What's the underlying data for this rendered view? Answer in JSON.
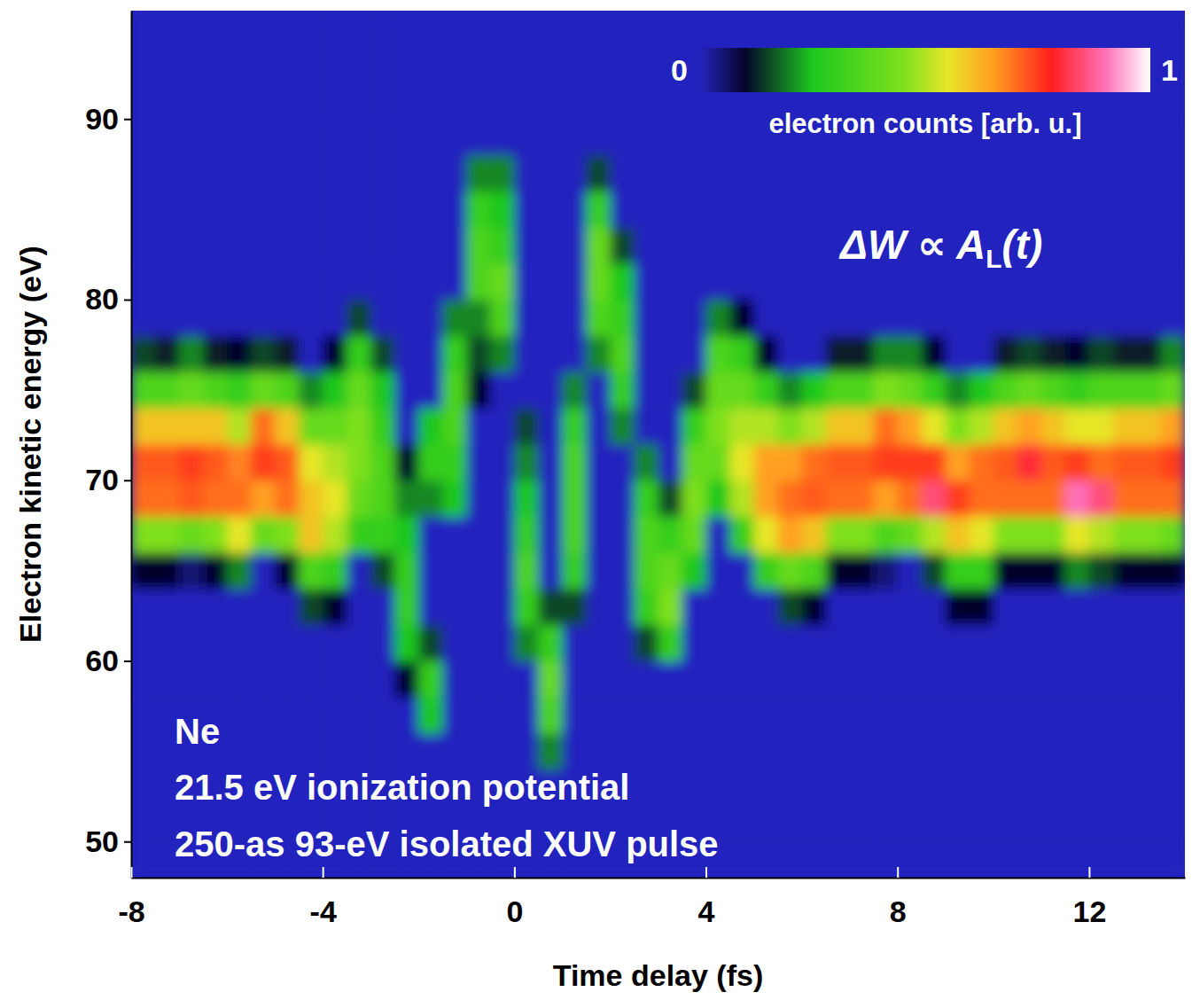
{
  "chart_data": {
    "type": "heatmap",
    "xlabel": "Time delay (fs)",
    "ylabel": "Electron kinetic energy (eV)",
    "xlim": [
      -8,
      14
    ],
    "ylim": [
      48,
      96
    ],
    "xticks": [
      -8,
      -4,
      0,
      4,
      8,
      12
    ],
    "yticks": [
      50,
      60,
      70,
      80,
      90
    ],
    "x": [
      -7.75,
      -7.25,
      -6.75,
      -6.25,
      -5.75,
      -5.25,
      -4.75,
      -4.25,
      -3.75,
      -3.25,
      -2.75,
      -2.25,
      -1.75,
      -1.25,
      -0.75,
      -0.25,
      0.25,
      0.75,
      1.25,
      1.75,
      2.25,
      2.75,
      3.25,
      3.75,
      4.25,
      4.75,
      5.25,
      5.75,
      6.25,
      6.75,
      7.25,
      7.75,
      8.25,
      8.75,
      9.25,
      9.75,
      10.25,
      10.75,
      11.25,
      11.75,
      12.25,
      12.75,
      13.25,
      13.75
    ],
    "y": [
      49,
      51,
      53,
      55,
      57,
      59,
      61,
      63,
      65,
      67,
      69,
      71,
      73,
      75,
      77,
      79,
      81,
      83,
      85,
      87,
      89,
      91,
      93,
      95
    ],
    "z": [
      [
        0,
        0,
        0,
        0,
        0,
        0,
        0,
        0,
        0.1,
        0.45,
        0.7,
        0.72,
        0.6,
        0.35,
        0.15,
        0,
        0,
        0,
        0,
        0,
        0,
        0,
        0,
        0
      ],
      [
        0,
        0,
        0,
        0,
        0,
        0,
        0,
        0,
        0.1,
        0.45,
        0.7,
        0.72,
        0.6,
        0.35,
        0.12,
        0,
        0,
        0,
        0,
        0,
        0,
        0,
        0,
        0
      ],
      [
        0,
        0,
        0,
        0,
        0,
        0,
        0,
        0,
        0.05,
        0.4,
        0.72,
        0.75,
        0.6,
        0.4,
        0.2,
        0,
        0,
        0,
        0,
        0,
        0,
        0,
        0,
        0
      ],
      [
        0,
        0,
        0,
        0,
        0,
        0,
        0,
        0,
        0.1,
        0.45,
        0.7,
        0.72,
        0.6,
        0.35,
        0.12,
        0,
        0,
        0,
        0,
        0,
        0,
        0,
        0,
        0
      ],
      [
        0,
        0,
        0,
        0,
        0,
        0,
        0,
        0,
        0.2,
        0.55,
        0.7,
        0.68,
        0.5,
        0.3,
        0.1,
        0,
        0,
        0,
        0,
        0,
        0,
        0,
        0,
        0
      ],
      [
        0,
        0,
        0,
        0,
        0,
        0,
        0,
        0,
        0,
        0.4,
        0.65,
        0.75,
        0.7,
        0.4,
        0.15,
        0,
        0,
        0,
        0,
        0,
        0,
        0,
        0,
        0
      ],
      [
        0,
        0,
        0,
        0,
        0,
        0,
        0,
        0,
        0.1,
        0.45,
        0.7,
        0.72,
        0.6,
        0.35,
        0.12,
        0,
        0,
        0,
        0,
        0,
        0,
        0,
        0,
        0
      ],
      [
        0,
        0,
        0,
        0,
        0,
        0,
        0,
        0.15,
        0.35,
        0.6,
        0.6,
        0.55,
        0.4,
        0.2,
        0,
        0,
        0,
        0,
        0,
        0,
        0,
        0,
        0,
        0
      ],
      [
        0,
        0,
        0,
        0,
        0,
        0,
        0,
        0.1,
        0.3,
        0.5,
        0.55,
        0.5,
        0.4,
        0.25,
        0.1,
        0,
        0,
        0,
        0,
        0,
        0,
        0,
        0,
        0
      ],
      [
        0,
        0,
        0,
        0,
        0,
        0,
        0,
        0,
        0,
        0.3,
        0.4,
        0.45,
        0.45,
        0.4,
        0.3,
        0.15,
        0,
        0,
        0,
        0,
        0,
        0,
        0,
        0
      ],
      [
        0,
        0,
        0,
        0,
        0,
        0,
        0,
        0,
        0.15,
        0.3,
        0.35,
        0.35,
        0.3,
        0.25,
        0.15,
        0,
        0,
        0,
        0,
        0,
        0,
        0,
        0,
        0
      ],
      [
        0,
        0,
        0,
        0,
        0,
        0.1,
        0.25,
        0.3,
        0.3,
        0.25,
        0.2,
        0.1,
        0,
        0,
        0,
        0,
        0,
        0,
        0,
        0,
        0,
        0,
        0,
        0
      ],
      [
        0,
        0,
        0,
        0,
        0.25,
        0.3,
        0.15,
        0,
        0,
        0,
        0.2,
        0.3,
        0.25,
        0,
        0,
        0,
        0,
        0,
        0,
        0,
        0,
        0,
        0,
        0
      ],
      [
        0,
        0,
        0,
        0,
        0,
        0,
        0,
        0,
        0,
        0,
        0.25,
        0.3,
        0.35,
        0.35,
        0.3,
        0.2,
        0,
        0,
        0,
        0,
        0,
        0,
        0,
        0
      ],
      [
        0,
        0,
        0,
        0,
        0,
        0,
        0,
        0,
        0,
        0,
        0,
        0,
        0,
        0.1,
        0.15,
        0.2,
        0.35,
        0.35,
        0.3,
        0.2,
        0,
        0,
        0,
        0
      ],
      [
        0,
        0,
        0,
        0,
        0,
        0,
        0,
        0,
        0,
        0,
        0,
        0,
        0,
        0,
        0.2,
        0.35,
        0.4,
        0.3,
        0.25,
        0.2,
        0,
        0,
        0,
        0
      ],
      [
        0,
        0,
        0,
        0,
        0,
        0,
        0.2,
        0.3,
        0.35,
        0.3,
        0.25,
        0.2,
        0.15,
        0,
        0,
        0,
        0,
        0,
        0,
        0,
        0,
        0,
        0,
        0
      ],
      [
        0,
        0,
        0,
        0.2,
        0.35,
        0.4,
        0.3,
        0.15,
        0,
        0,
        0,
        0,
        0,
        0,
        0,
        0,
        0,
        0,
        0,
        0,
        0,
        0,
        0,
        0
      ],
      [
        0,
        0,
        0,
        0,
        0,
        0,
        0,
        0.15,
        0.3,
        0.35,
        0.35,
        0.35,
        0.3,
        0.2,
        0,
        0,
        0,
        0,
        0,
        0,
        0,
        0,
        0,
        0
      ],
      [
        0,
        0,
        0,
        0,
        0,
        0,
        0,
        0,
        0,
        0,
        0,
        0,
        0,
        0,
        0.2,
        0.35,
        0.4,
        0.4,
        0.3,
        0.15,
        0,
        0,
        0,
        0
      ],
      [
        0,
        0,
        0,
        0,
        0,
        0,
        0,
        0,
        0,
        0,
        0,
        0,
        0.2,
        0.3,
        0.35,
        0.3,
        0.25,
        0.15,
        0,
        0,
        0,
        0,
        0,
        0
      ],
      [
        0,
        0,
        0,
        0,
        0,
        0,
        0.15,
        0.3,
        0.35,
        0.35,
        0.3,
        0.2,
        0,
        0,
        0,
        0,
        0,
        0,
        0,
        0,
        0,
        0,
        0,
        0
      ],
      [
        0,
        0,
        0,
        0,
        0,
        0,
        0.3,
        0.45,
        0.4,
        0.3,
        0.15,
        0,
        0,
        0,
        0,
        0,
        0,
        0,
        0,
        0,
        0,
        0,
        0,
        0
      ],
      [
        0,
        0,
        0,
        0,
        0,
        0,
        0,
        0,
        0.25,
        0.4,
        0.45,
        0.4,
        0.3,
        0.15,
        0,
        0,
        0,
        0,
        0,
        0,
        0,
        0,
        0,
        0
      ],
      [
        0,
        0,
        0,
        0,
        0,
        0,
        0,
        0,
        0,
        0,
        0.25,
        0.4,
        0.45,
        0.4,
        0.35,
        0.2,
        0,
        0,
        0,
        0,
        0,
        0,
        0,
        0
      ],
      [
        0,
        0,
        0,
        0,
        0,
        0,
        0,
        0,
        0,
        0.3,
        0.5,
        0.55,
        0.5,
        0.4,
        0.3,
        0.1,
        0,
        0,
        0,
        0,
        0,
        0,
        0,
        0
      ],
      [
        0,
        0,
        0,
        0,
        0,
        0,
        0,
        0,
        0.3,
        0.55,
        0.65,
        0.65,
        0.5,
        0.3,
        0.1,
        0,
        0,
        0,
        0,
        0,
        0,
        0,
        0,
        0
      ],
      [
        0,
        0,
        0,
        0,
        0,
        0,
        0,
        0.15,
        0.4,
        0.65,
        0.7,
        0.65,
        0.45,
        0.2,
        0,
        0,
        0,
        0,
        0,
        0,
        0,
        0,
        0,
        0
      ],
      [
        0,
        0,
        0,
        0,
        0,
        0,
        0,
        0.1,
        0.35,
        0.6,
        0.72,
        0.7,
        0.5,
        0.25,
        0,
        0,
        0,
        0,
        0,
        0,
        0,
        0,
        0,
        0
      ],
      [
        0,
        0,
        0,
        0,
        0,
        0,
        0,
        0,
        0.1,
        0.45,
        0.7,
        0.72,
        0.6,
        0.35,
        0.12,
        0,
        0,
        0,
        0,
        0,
        0,
        0,
        0,
        0
      ],
      [
        0,
        0,
        0,
        0,
        0,
        0,
        0,
        0,
        0.1,
        0.45,
        0.7,
        0.72,
        0.6,
        0.35,
        0.12,
        0,
        0,
        0,
        0,
        0,
        0,
        0,
        0,
        0
      ],
      [
        0,
        0,
        0,
        0,
        0,
        0,
        0,
        0,
        0.05,
        0.35,
        0.65,
        0.75,
        0.7,
        0.45,
        0.2,
        0,
        0,
        0,
        0,
        0,
        0,
        0,
        0,
        0
      ],
      [
        0,
        0,
        0,
        0,
        0,
        0,
        0,
        0,
        0,
        0.4,
        0.7,
        0.75,
        0.65,
        0.4,
        0.2,
        0,
        0,
        0,
        0,
        0,
        0,
        0,
        0,
        0
      ],
      [
        0,
        0,
        0,
        0,
        0,
        0,
        0,
        0,
        0.15,
        0.5,
        0.85,
        0.75,
        0.55,
        0.3,
        0.1,
        0,
        0,
        0,
        0,
        0,
        0,
        0,
        0,
        0
      ],
      [
        0,
        0,
        0,
        0,
        0,
        0,
        0,
        0.1,
        0.3,
        0.6,
        0.75,
        0.65,
        0.45,
        0.2,
        0,
        0,
        0,
        0,
        0,
        0,
        0,
        0,
        0,
        0
      ],
      [
        0,
        0,
        0,
        0,
        0,
        0,
        0,
        0.1,
        0.3,
        0.55,
        0.7,
        0.7,
        0.5,
        0.25,
        0,
        0,
        0,
        0,
        0,
        0,
        0,
        0,
        0,
        0
      ],
      [
        0,
        0,
        0,
        0,
        0,
        0,
        0,
        0,
        0.1,
        0.45,
        0.7,
        0.72,
        0.6,
        0.35,
        0.12,
        0,
        0,
        0,
        0,
        0,
        0,
        0,
        0,
        0
      ],
      [
        0,
        0,
        0,
        0,
        0,
        0,
        0,
        0,
        0.1,
        0.45,
        0.7,
        0.8,
        0.65,
        0.4,
        0.15,
        0,
        0,
        0,
        0,
        0,
        0,
        0,
        0,
        0
      ],
      [
        0,
        0,
        0,
        0,
        0,
        0,
        0,
        0,
        0.1,
        0.45,
        0.7,
        0.72,
        0.6,
        0.35,
        0.12,
        0,
        0,
        0,
        0,
        0,
        0,
        0,
        0,
        0
      ],
      [
        0,
        0,
        0,
        0,
        0,
        0,
        0,
        0,
        0.2,
        0.55,
        0.9,
        0.75,
        0.55,
        0.3,
        0.1,
        0,
        0,
        0,
        0,
        0,
        0,
        0,
        0,
        0
      ],
      [
        0,
        0,
        0,
        0,
        0,
        0,
        0,
        0,
        0.15,
        0.5,
        0.85,
        0.7,
        0.55,
        0.35,
        0.15,
        0,
        0,
        0,
        0,
        0,
        0,
        0,
        0,
        0
      ],
      [
        0,
        0,
        0,
        0,
        0,
        0,
        0,
        0,
        0.1,
        0.45,
        0.7,
        0.72,
        0.6,
        0.35,
        0.12,
        0,
        0,
        0,
        0,
        0,
        0,
        0,
        0,
        0
      ],
      [
        0,
        0,
        0,
        0,
        0,
        0,
        0,
        0,
        0.1,
        0.45,
        0.7,
        0.72,
        0.6,
        0.35,
        0.12,
        0,
        0,
        0,
        0,
        0,
        0,
        0,
        0,
        0
      ],
      [
        0,
        0,
        0,
        0,
        0,
        0,
        0,
        0,
        0.1,
        0.4,
        0.7,
        0.75,
        0.65,
        0.4,
        0.2,
        0,
        0,
        0,
        0,
        0,
        0,
        0,
        0,
        0
      ]
    ],
    "zlim": [
      0,
      1
    ],
    "zticks": [
      0,
      1
    ],
    "zlabel": "electron counts [arb. u.]",
    "annotations": [
      {
        "parts": [
          "ΔW ∝ A",
          "L",
          "(t)"
        ]
      },
      {
        "text": "Ne"
      },
      {
        "text": "21.5 eV ionization potential"
      },
      {
        "text": "250-as 93-eV isolated XUV pulse"
      }
    ]
  }
}
